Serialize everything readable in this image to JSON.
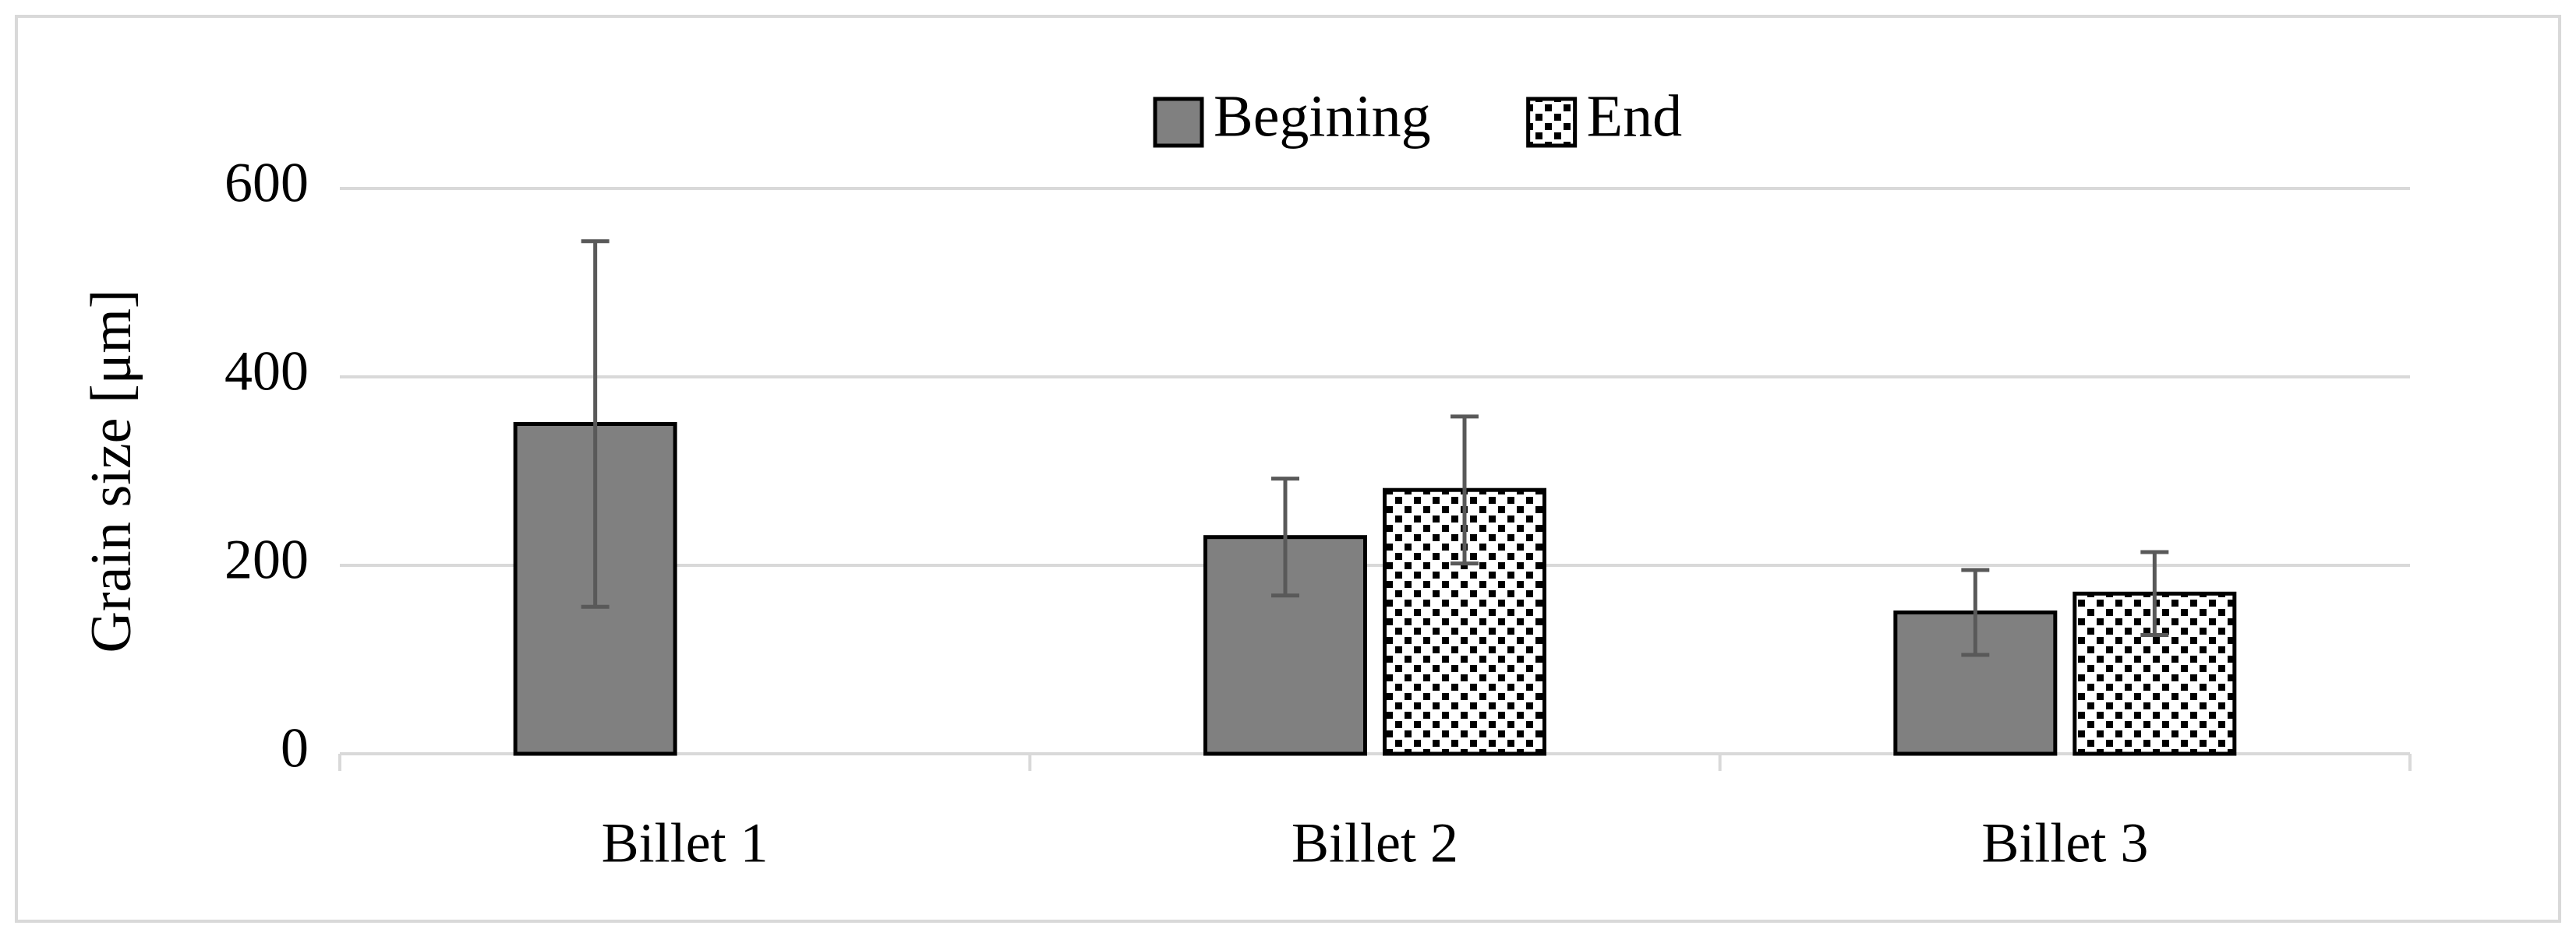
{
  "chart_data": {
    "type": "bar",
    "y_label": "Grain size [μm]",
    "categories": [
      "Billet 1",
      "Billet 2",
      "Billet 3"
    ],
    "series": [
      {
        "name": "Begining",
        "color": "#808080",
        "values": [
          350,
          230,
          150
        ],
        "errors": [
          194,
          62,
          45
        ]
      },
      {
        "name": "End",
        "color": "#000000",
        "pattern": "dots",
        "values": [
          null,
          280,
          170
        ],
        "errors": [
          null,
          78,
          44
        ]
      }
    ],
    "ylim": [
      0,
      600
    ],
    "yticks": [
      0,
      200,
      400,
      600
    ],
    "grid": true,
    "legend": "top"
  }
}
